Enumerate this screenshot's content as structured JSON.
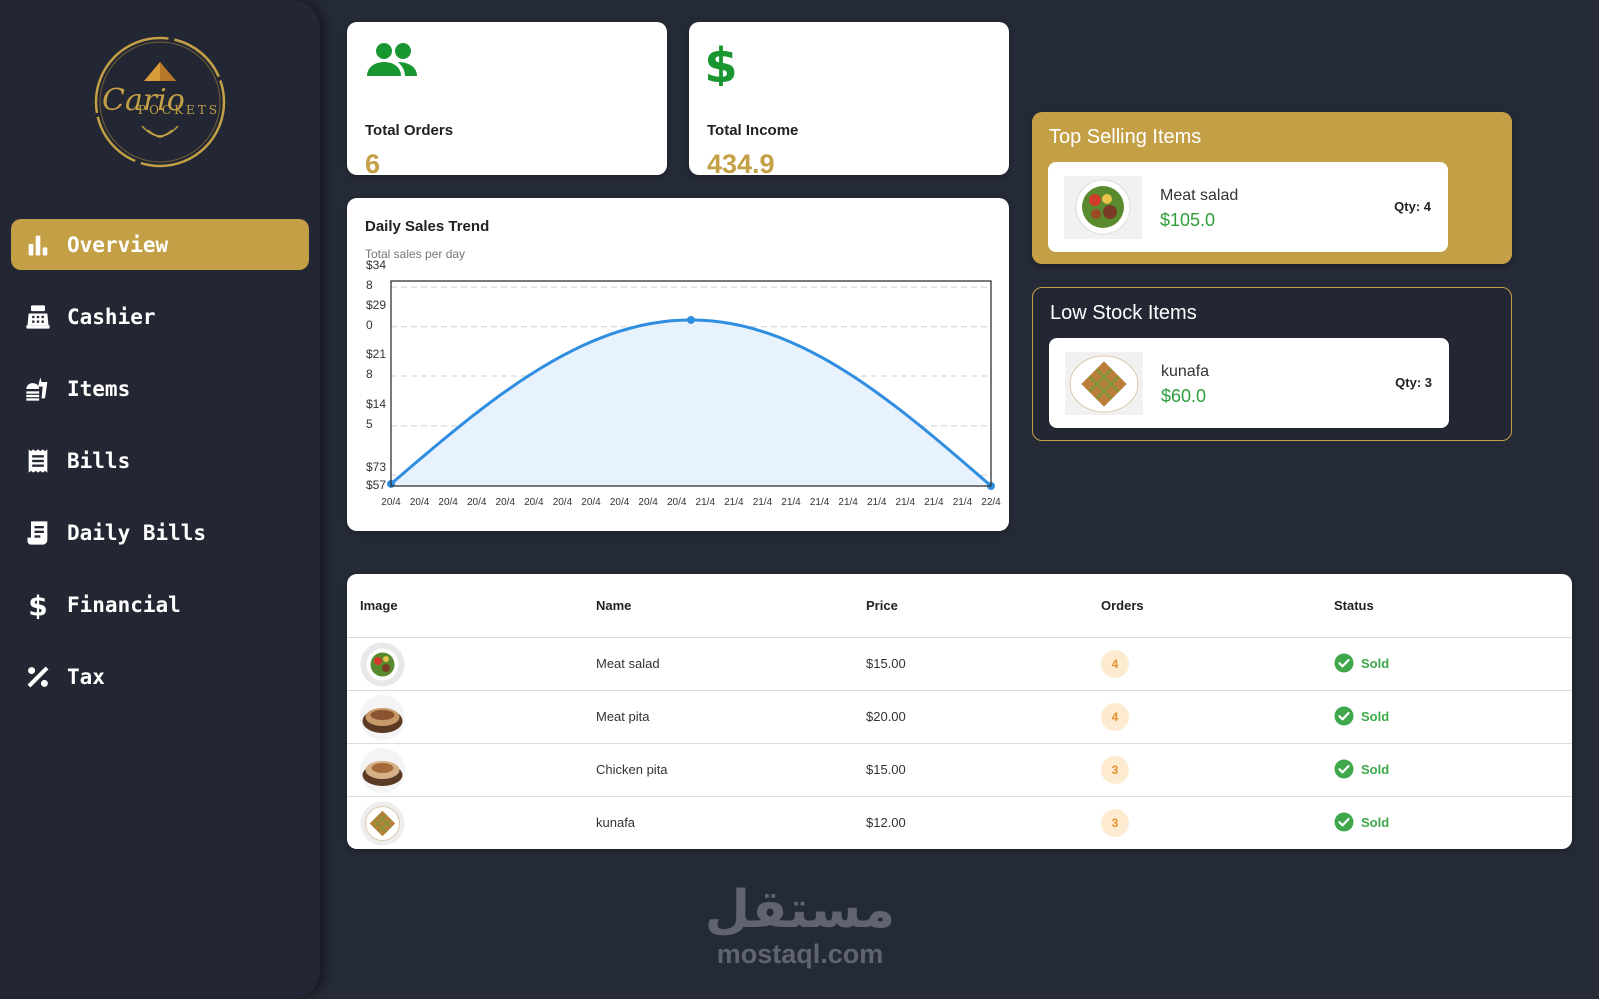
{
  "sidebar": {
    "logo_text": "Cario POCKETS",
    "items": [
      {
        "label": "Overview",
        "icon": "bar-chart-icon",
        "active": true
      },
      {
        "label": "Cashier",
        "icon": "cash-register-icon",
        "active": false
      },
      {
        "label": "Items",
        "icon": "fastfood-icon",
        "active": false
      },
      {
        "label": "Bills",
        "icon": "receipt-icon",
        "active": false
      },
      {
        "label": "Daily Bills",
        "icon": "receipt-long-icon",
        "active": false
      },
      {
        "label": "Financial",
        "icon": "dollar-icon",
        "active": false
      },
      {
        "label": "Tax",
        "icon": "percent-icon",
        "active": false
      }
    ]
  },
  "stats": {
    "orders": {
      "label": "Total Orders",
      "value": "6",
      "icon": "people-icon"
    },
    "income": {
      "label": "Total Income",
      "value": "434.9",
      "icon": "dollar-icon"
    }
  },
  "chart": {
    "title": "Daily Sales Trend",
    "subtitle": "Total sales per day"
  },
  "chart_data": {
    "type": "area",
    "title": "Daily Sales Trend",
    "subtitle": "Total sales per day",
    "x": [
      "20/4",
      "20/4",
      "20/4",
      "20/4",
      "20/4",
      "20/4",
      "20/4",
      "20/4",
      "20/4",
      "20/4",
      "20/4",
      "21/4",
      "21/4",
      "21/4",
      "21/4",
      "21/4",
      "21/4",
      "21/4",
      "21/4",
      "21/4",
      "21/4",
      "22/4"
    ],
    "y_ticks": [
      {
        "value": 348,
        "label": "$348"
      },
      {
        "value": 290,
        "label": "$290"
      },
      {
        "value": 218,
        "label": "$218"
      },
      {
        "value": 145,
        "label": "$145"
      },
      {
        "value": 73,
        "label": "$73"
      },
      {
        "value": 57,
        "label": "$57"
      }
    ],
    "series": [
      {
        "points": [
          {
            "x": "20/4",
            "y": 60
          },
          {
            "x": "21/4",
            "y": 300
          },
          {
            "x": "22/4",
            "y": 57
          }
        ]
      }
    ],
    "ylim": [
      57,
      357
    ],
    "grid": true,
    "colors": {
      "line": "#2f8ee0",
      "fill": "#e8f2fc"
    }
  },
  "top_selling": {
    "title": "Top Selling Items",
    "item": {
      "name": "Meat salad",
      "price": "$105.0",
      "qty": "Qty: 4",
      "image": "meat-salad"
    }
  },
  "low_stock": {
    "title": "Low Stock Items",
    "item": {
      "name": "kunafa",
      "price": "$60.0",
      "qty": "Qty: 3",
      "image": "kunafa"
    }
  },
  "table": {
    "headers": {
      "image": "Image",
      "name": "Name",
      "price": "Price",
      "orders": "Orders",
      "status": "Status"
    },
    "rows": [
      {
        "image": "meat-salad",
        "name": "Meat salad",
        "price": "$15.00",
        "orders": "4",
        "status": "Sold"
      },
      {
        "image": "meat-pita",
        "name": "Meat pita",
        "price": "$20.00",
        "orders": "4",
        "status": "Sold"
      },
      {
        "image": "chicken-pita",
        "name": "Chicken pita",
        "price": "$15.00",
        "orders": "3",
        "status": "Sold"
      },
      {
        "image": "kunafa",
        "name": "kunafa",
        "price": "$12.00",
        "orders": "3",
        "status": "Sold"
      }
    ]
  },
  "watermark": {
    "arabic": "مستقل",
    "latin": "mostaql.com"
  },
  "colors": {
    "accent": "#c39f46",
    "background": "#252a37",
    "success": "#3ea84a",
    "price_green": "#2e9d3b",
    "icon_green": "#1a9630"
  }
}
